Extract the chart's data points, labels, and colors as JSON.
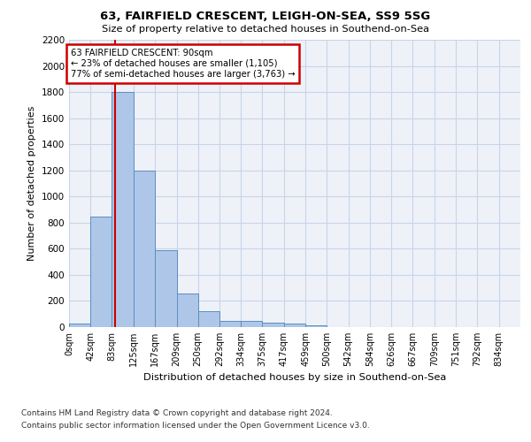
{
  "title1": "63, FAIRFIELD CRESCENT, LEIGH-ON-SEA, SS9 5SG",
  "title2": "Size of property relative to detached houses in Southend-on-Sea",
  "xlabel": "Distribution of detached houses by size in Southend-on-Sea",
  "ylabel": "Number of detached properties",
  "footer1": "Contains HM Land Registry data © Crown copyright and database right 2024.",
  "footer2": "Contains public sector information licensed under the Open Government Licence v3.0.",
  "bin_edges": [
    0,
    42,
    83,
    125,
    167,
    209,
    250,
    292,
    334,
    375,
    417,
    459,
    500,
    542,
    584,
    626,
    667,
    709,
    751,
    792,
    834
  ],
  "bar_heights": [
    25,
    845,
    1800,
    1200,
    590,
    260,
    125,
    50,
    45,
    35,
    30,
    15,
    0,
    0,
    0,
    0,
    0,
    0,
    0,
    0
  ],
  "bar_color": "#aec6e8",
  "bar_edge_color": "#5a8fc0",
  "grid_color": "#c8d4e8",
  "background_color": "#eef2f8",
  "property_size": 90,
  "annotation_text": "63 FAIRFIELD CRESCENT: 90sqm\n← 23% of detached houses are smaller (1,105)\n77% of semi-detached houses are larger (3,763) →",
  "annotation_box_color": "#ffffff",
  "annotation_border_color": "#cc0000",
  "vline_color": "#cc0000",
  "ylim": [
    0,
    2200
  ],
  "yticks": [
    0,
    200,
    400,
    600,
    800,
    1000,
    1200,
    1400,
    1600,
    1800,
    2000,
    2200
  ]
}
